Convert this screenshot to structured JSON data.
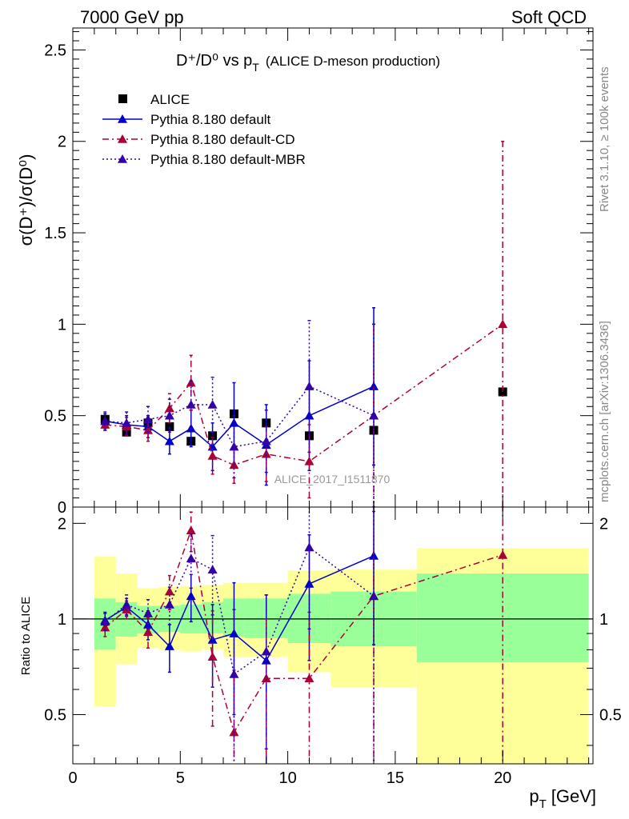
{
  "header": {
    "left": "7000 GeV pp",
    "right": "Soft QCD"
  },
  "side_notes": {
    "rivet": "Rivet 3.1.10, ≥ 100k events",
    "mcplots": "mcplots.cern.ch [arXiv:1306.3436]"
  },
  "colors": {
    "alice": "#000000",
    "default": "#0000cc",
    "cd": "#aa0033",
    "mbr": "#3300aa",
    "band_inner": "#99ff99",
    "band_outer": "#ffff99"
  },
  "chart_data": [
    {
      "type": "scatter",
      "title_main": "D⁺/D⁰ vs p",
      "title_sub": "T",
      "title_extra": "(ALICE D-meson production)",
      "ylabel": "σ(D⁺)/σ(D⁰)",
      "watermark": "ALICE_2017_I1511870",
      "xlim": [
        0,
        24.2
      ],
      "ylim": [
        0,
        2.62
      ],
      "yticks": [
        0.5,
        1,
        1.5,
        2,
        2.5
      ],
      "ytick_labels": [
        "0.5",
        "1",
        "1.5",
        "2",
        "2.5"
      ],
      "ytick_zero_label": "0",
      "legend_position": "top-left",
      "series": [
        {
          "name": "ALICE",
          "key": "alice",
          "marker": "square",
          "x": [
            1.5,
            2.5,
            3.5,
            4.5,
            5.5,
            6.5,
            7.5,
            9,
            11,
            14,
            20
          ],
          "y": [
            0.48,
            0.41,
            0.46,
            0.44,
            0.36,
            0.39,
            0.51,
            0.46,
            0.39,
            0.42,
            0.63
          ],
          "yerr": [
            0.02,
            0.02,
            0.02,
            0.02,
            0.02,
            0.02,
            0.02,
            0.02,
            0.02,
            0.02,
            0.02
          ]
        },
        {
          "name": "Pythia 8.180 default",
          "key": "default",
          "marker": "triangle",
          "dash": "",
          "x": [
            1.5,
            2.5,
            3.5,
            4.5,
            5.5,
            6.5,
            7.5,
            9,
            11,
            14
          ],
          "y": [
            0.47,
            0.45,
            0.44,
            0.36,
            0.43,
            0.33,
            0.46,
            0.34,
            0.5,
            0.66
          ],
          "yerr": [
            0.04,
            0.05,
            0.06,
            0.07,
            0.1,
            0.13,
            0.22,
            0.22,
            0.3,
            0.43
          ]
        },
        {
          "name": "Pythia 8.180 default-CD",
          "key": "cd",
          "marker": "triangle",
          "dash": "8,4,2,4",
          "x": [
            1.5,
            2.5,
            3.5,
            4.5,
            5.5,
            6.5,
            7.5,
            9,
            11,
            14,
            20
          ],
          "y": [
            0.45,
            0.44,
            0.42,
            0.54,
            0.68,
            0.28,
            0.23,
            0.29,
            0.25,
            0.5,
            1.0
          ],
          "yerr": [
            0.03,
            0.05,
            0.06,
            0.08,
            0.15,
            0.1,
            0.1,
            0.15,
            0.2,
            0.5,
            1.0
          ]
        },
        {
          "name": "Pythia 8.180 default-MBR",
          "key": "mbr",
          "marker": "triangle",
          "dash": "2,3",
          "x": [
            1.5,
            2.5,
            3.5,
            4.5,
            5.5,
            6.5,
            7.5,
            9,
            11,
            14
          ],
          "y": [
            0.47,
            0.46,
            0.48,
            0.5,
            0.56,
            0.56,
            0.33,
            0.36,
            0.66,
            0.5
          ],
          "yerr": [
            0.05,
            0.06,
            0.07,
            0.09,
            0.13,
            0.15,
            0.17,
            0.17,
            0.36,
            0.5
          ]
        }
      ]
    },
    {
      "type": "scatter",
      "ylabel": "Ratio to ALICE",
      "xlabel_main": "p",
      "xlabel_sub": "T",
      "xlabel_unit": "[GeV]",
      "xlim": [
        0,
        24.2
      ],
      "ylim": [
        0.35,
        2.25
      ],
      "xticks": [
        0,
        5,
        10,
        15,
        20
      ],
      "xtick_labels": [
        "0",
        "5",
        "10",
        "15",
        "20"
      ],
      "yticks": [
        0.5,
        1,
        2
      ],
      "ytick_labels": [
        "0.5",
        "1",
        "2"
      ],
      "reference_line": 1,
      "bands": [
        {
          "x0": 1,
          "x1": 2,
          "lo_inner": 0.8,
          "hi_inner": 1.16,
          "lo_outer": 0.53,
          "hi_outer": 1.57
        },
        {
          "x0": 2,
          "x1": 3,
          "lo_inner": 0.88,
          "hi_inner": 1.13,
          "lo_outer": 0.72,
          "hi_outer": 1.39
        },
        {
          "x0": 3,
          "x1": 4,
          "lo_inner": 0.9,
          "hi_inner": 1.1,
          "lo_outer": 0.81,
          "hi_outer": 1.25
        },
        {
          "x0": 4,
          "x1": 5,
          "lo_inner": 0.91,
          "hi_inner": 1.1,
          "lo_outer": 0.8,
          "hi_outer": 1.26
        },
        {
          "x0": 5,
          "x1": 6,
          "lo_inner": 0.9,
          "hi_inner": 1.11,
          "lo_outer": 0.79,
          "hi_outer": 1.27
        },
        {
          "x0": 6,
          "x1": 7,
          "lo_inner": 0.9,
          "hi_inner": 1.13,
          "lo_outer": 0.8,
          "hi_outer": 1.28
        },
        {
          "x0": 7,
          "x1": 8,
          "lo_inner": 0.88,
          "hi_inner": 1.16,
          "lo_outer": 0.76,
          "hi_outer": 1.3
        },
        {
          "x0": 8,
          "x1": 10,
          "lo_inner": 0.87,
          "hi_inner": 1.16,
          "lo_outer": 0.76,
          "hi_outer": 1.3
        },
        {
          "x0": 10,
          "x1": 12,
          "lo_inner": 0.84,
          "hi_inner": 1.2,
          "lo_outer": 0.68,
          "hi_outer": 1.42
        },
        {
          "x0": 12,
          "x1": 16,
          "lo_inner": 0.82,
          "hi_inner": 1.22,
          "lo_outer": 0.61,
          "hi_outer": 1.43
        },
        {
          "x0": 16,
          "x1": 24,
          "lo_inner": 0.73,
          "hi_inner": 1.39,
          "lo_outer": 0.35,
          "hi_outer": 1.67
        }
      ],
      "series": [
        {
          "name": "Pythia 8.180 default",
          "key": "default",
          "dash": "",
          "x": [
            1.5,
            2.5,
            3.5,
            4.5,
            5.5,
            6.5,
            7.5,
            9,
            11,
            14
          ],
          "y": [
            0.99,
            1.09,
            0.96,
            0.82,
            1.18,
            0.86,
            0.9,
            0.74,
            1.29,
            1.58
          ],
          "yerr": [
            0.06,
            0.07,
            0.1,
            0.14,
            0.2,
            0.25,
            0.4,
            0.45,
            0.55,
            0.75
          ]
        },
        {
          "name": "Pythia 8.180 default-CD",
          "key": "cd",
          "dash": "8,4,2,4",
          "x": [
            1.5,
            2.5,
            3.5,
            4.5,
            5.5,
            6.5,
            7.5,
            9,
            11,
            14,
            20
          ],
          "y": [
            0.94,
            1.07,
            0.91,
            1.22,
            1.9,
            0.76,
            0.44,
            0.65,
            0.65,
            1.18,
            1.59
          ],
          "yerr": [
            0.06,
            0.07,
            0.1,
            0.15,
            0.27,
            0.3,
            0.25,
            0.35,
            0.4,
            1.0,
            1.6
          ]
        },
        {
          "name": "Pythia 8.180 default-MBR",
          "key": "mbr",
          "dash": "2,3",
          "x": [
            1.5,
            2.5,
            3.5,
            4.5,
            5.5,
            6.5,
            7.5,
            9,
            11,
            14
          ],
          "y": [
            0.98,
            1.11,
            1.04,
            1.11,
            1.55,
            1.43,
            0.67,
            0.79,
            1.68,
            1.18
          ],
          "yerr": [
            0.06,
            0.08,
            0.11,
            0.15,
            0.3,
            0.4,
            0.4,
            0.4,
            0.75,
            1.2
          ]
        }
      ]
    }
  ]
}
